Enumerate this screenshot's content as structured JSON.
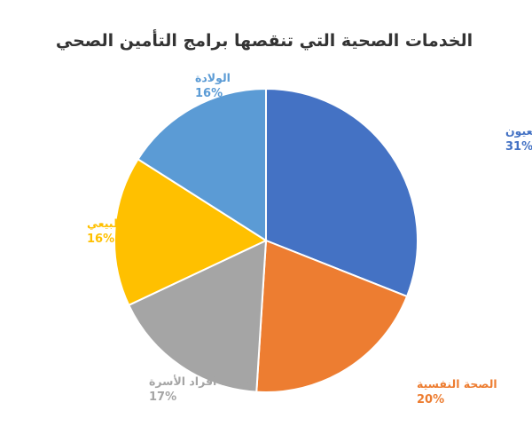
{
  "chart_data": {
    "type": "pie",
    "title": "الخدمات الصحية التي تنقصها برامج التأمين الصحي",
    "slices": [
      {
        "label": "طب الأسنان والعيون",
        "value": 31,
        "value_label": "31%",
        "color": "#4472C4"
      },
      {
        "label": "الصحة النفسية",
        "value": 20,
        "value_label": "20%",
        "color": "#ED7D31"
      },
      {
        "label": "إضافة أفراد الأسرة",
        "value": 17,
        "value_label": "17%",
        "color": "#A5A5A5"
      },
      {
        "label": "العلاج الطبيعي",
        "value": 16,
        "value_label": "16%",
        "color": "#FFC000"
      },
      {
        "label": "الولادة",
        "value": 16,
        "value_label": "16%",
        "color": "#5B9BD5"
      }
    ],
    "legend": "none"
  }
}
